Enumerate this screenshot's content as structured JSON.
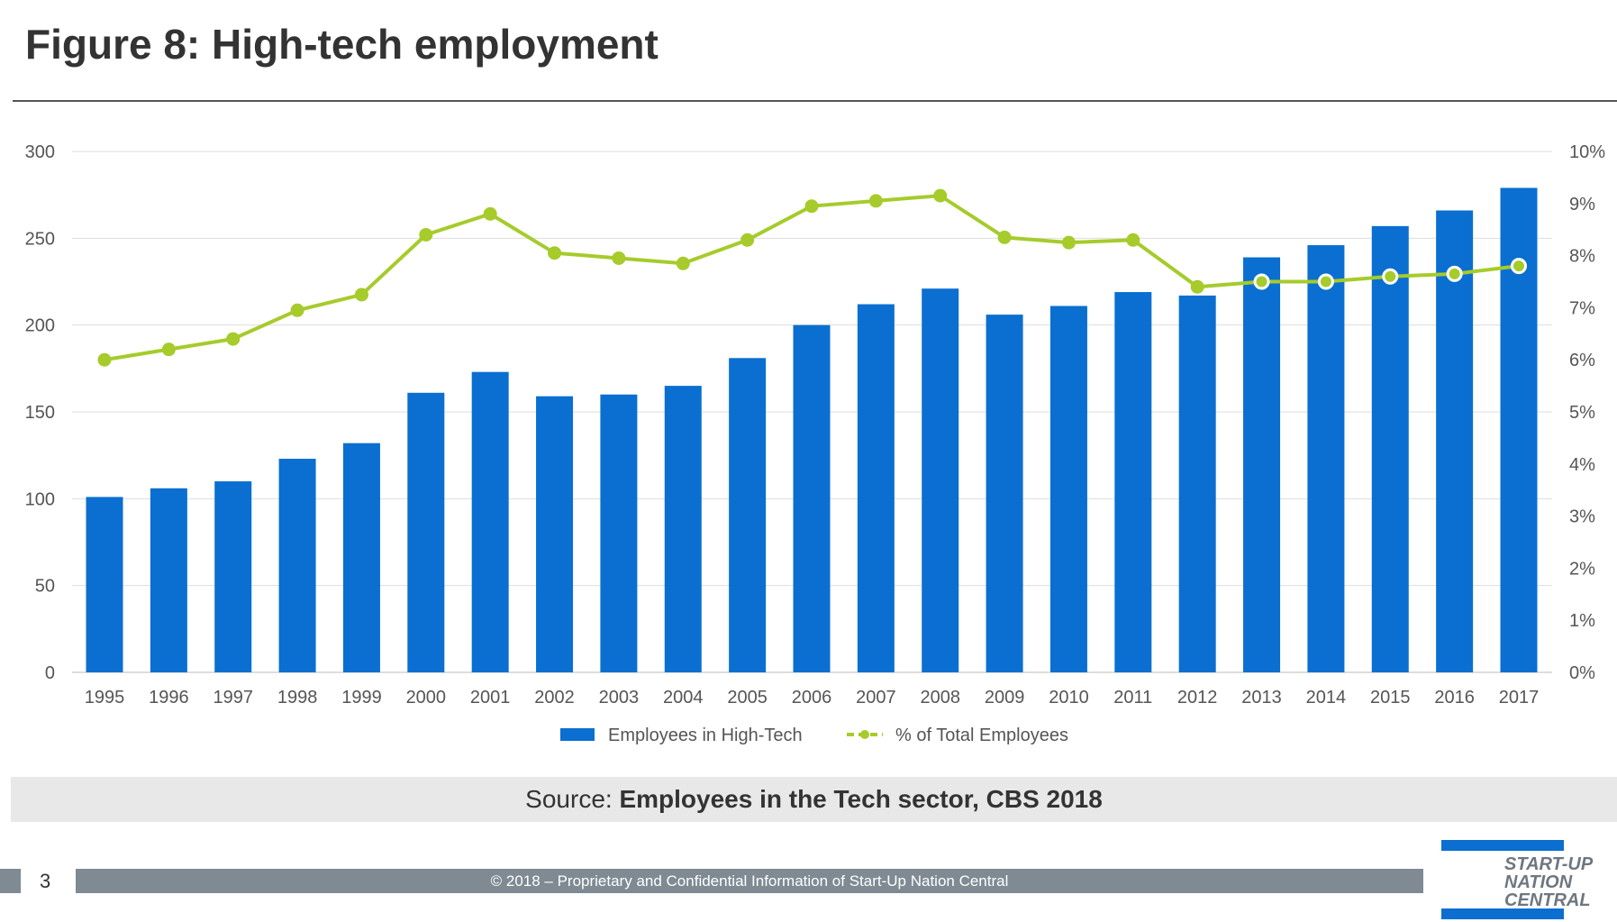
{
  "title": "Figure 8: High-tech employment",
  "source": {
    "prefix": "Source: ",
    "text": "Employees in the Tech sector, CBS 2018"
  },
  "footer": {
    "page_number": "3",
    "copyright": "© 2018 – Proprietary and Confidential Information of Start-Up Nation Central"
  },
  "logo": {
    "text": "START-UP NATION CENTRAL",
    "color": "#0a6fd0"
  },
  "chart_data": {
    "type": "bar",
    "categories": [
      "1995",
      "1996",
      "1997",
      "1998",
      "1999",
      "2000",
      "2001",
      "2002",
      "2003",
      "2004",
      "2005",
      "2006",
      "2007",
      "2008",
      "2009",
      "2010",
      "2011",
      "2012",
      "2013",
      "2014",
      "2015",
      "2016",
      "2017"
    ],
    "series": [
      {
        "name": "Employees in High-Tech",
        "type": "bar",
        "axis": "left",
        "color": "#0a6fd0",
        "values": [
          101,
          106,
          110,
          123,
          132,
          161,
          173,
          159,
          160,
          165,
          181,
          200,
          212,
          221,
          206,
          211,
          219,
          217,
          239,
          246,
          257,
          266,
          279
        ]
      },
      {
        "name": "% of Total Employees",
        "type": "line",
        "axis": "right",
        "color": "#a6cb2b",
        "values": [
          6.0,
          6.2,
          6.4,
          6.95,
          7.25,
          8.4,
          8.8,
          8.05,
          7.95,
          7.85,
          8.3,
          8.95,
          9.05,
          9.15,
          8.35,
          8.25,
          8.3,
          7.4,
          7.5,
          7.5,
          7.6,
          7.65,
          7.8
        ]
      }
    ],
    "yleft": {
      "lim": [
        0,
        300
      ],
      "ticks": [
        "0",
        "50",
        "100",
        "150",
        "200",
        "250",
        "300"
      ]
    },
    "yright": {
      "lim": [
        0,
        10
      ],
      "ticks": [
        "0%",
        "1%",
        "2%",
        "3%",
        "4%",
        "5%",
        "6%",
        "7%",
        "8%",
        "9%",
        "10%"
      ]
    },
    "grid": true,
    "legend": "bottom"
  }
}
